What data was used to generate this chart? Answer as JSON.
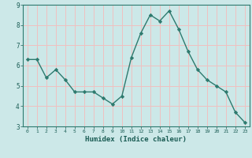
{
  "x": [
    0,
    1,
    2,
    3,
    4,
    5,
    6,
    7,
    8,
    9,
    10,
    11,
    12,
    13,
    14,
    15,
    16,
    17,
    18,
    19,
    20,
    21,
    22,
    23
  ],
  "y": [
    6.3,
    6.3,
    5.4,
    5.8,
    5.3,
    4.7,
    4.7,
    4.7,
    4.4,
    4.1,
    4.5,
    6.4,
    7.6,
    8.5,
    8.2,
    8.7,
    7.8,
    6.7,
    5.8,
    5.3,
    5.0,
    4.7,
    3.7,
    3.2
  ],
  "xlabel": "Humidex (Indice chaleur)",
  "ylim": [
    3,
    9
  ],
  "xlim": [
    -0.5,
    23.5
  ],
  "yticks": [
    3,
    4,
    5,
    6,
    7,
    8,
    9
  ],
  "xticks": [
    0,
    1,
    2,
    3,
    4,
    5,
    6,
    7,
    8,
    9,
    10,
    11,
    12,
    13,
    14,
    15,
    16,
    17,
    18,
    19,
    20,
    21,
    22,
    23
  ],
  "line_color": "#2d7a6e",
  "marker_color": "#2d7a6e",
  "bg_color": "#cce8e8",
  "grid_color": "#f0c0c0",
  "axis_label_color": "#1a5c54",
  "tick_label_color": "#1a5c54",
  "spine_color": "#2d7a6e"
}
